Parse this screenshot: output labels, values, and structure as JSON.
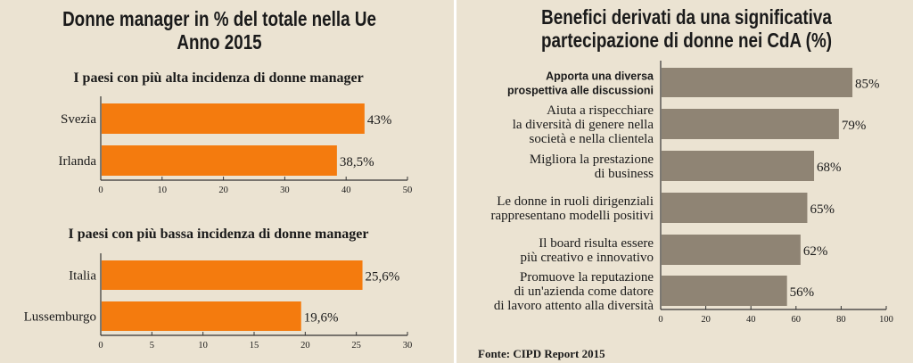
{
  "colors": {
    "background": "#ebe3d2",
    "orange": "#f47b0e",
    "gray": "#8f8474",
    "divider": "#ffffff"
  },
  "left_panel": {
    "title_line1": "Donne manager in % del totale nella Ue",
    "title_line2": "Anno 2015"
  },
  "right_panel": {
    "title_line1": "Benefici derivati da una significativa",
    "title_line2": "partecipazione di donne nei CdA (%)",
    "source": "Fonte: CIPD Report 2015"
  },
  "chart_data": [
    {
      "type": "bar",
      "orientation": "horizontal",
      "subtitle": "I paesi con più alta incidenza di donne manager",
      "categories": [
        "Svezia",
        "Irlanda"
      ],
      "values": [
        43,
        38.5
      ],
      "data_labels": [
        "43%",
        "38,5%"
      ],
      "xlim": [
        0,
        50
      ],
      "xticks": [
        "0",
        "10",
        "20",
        "30",
        "40",
        "50"
      ],
      "color": "#f47b0e",
      "grid": false
    },
    {
      "type": "bar",
      "orientation": "horizontal",
      "subtitle": "I paesi con più bassa incidenza di donne manager",
      "categories": [
        "Italia",
        "Lussemburgo"
      ],
      "values": [
        25.6,
        19.6
      ],
      "data_labels": [
        "25,6%",
        "19,6%"
      ],
      "xlim": [
        0,
        30
      ],
      "xticks": [
        "0",
        "5",
        "10",
        "15",
        "20",
        "25",
        "30"
      ],
      "color": "#f47b0e",
      "grid": false
    },
    {
      "type": "bar",
      "orientation": "horizontal",
      "categories": [
        [
          "Apporta una diversa",
          "prospettiva alle discussioni"
        ],
        [
          "Aiuta a rispecchiare",
          "la diversità di genere nella",
          "società e nella clientela"
        ],
        [
          "Migliora la prestazione",
          "di business"
        ],
        [
          "Le donne in ruoli dirigenziali",
          "rappresentano modelli positivi"
        ],
        [
          "Il board risulta essere",
          "più creativo e innovativo"
        ],
        [
          "Promuove la reputazione",
          "di un'azienda come datore",
          "di lavoro attento alla diversità"
        ]
      ],
      "values": [
        85,
        79,
        68,
        65,
        62,
        56
      ],
      "data_labels": [
        "85%",
        "79%",
        "68%",
        "65%",
        "62%",
        "56%"
      ],
      "xlim": [
        0,
        100
      ],
      "xticks": [
        "0",
        "20",
        "40",
        "60",
        "80",
        "100"
      ],
      "color": "#8f8474",
      "grid": false
    }
  ]
}
